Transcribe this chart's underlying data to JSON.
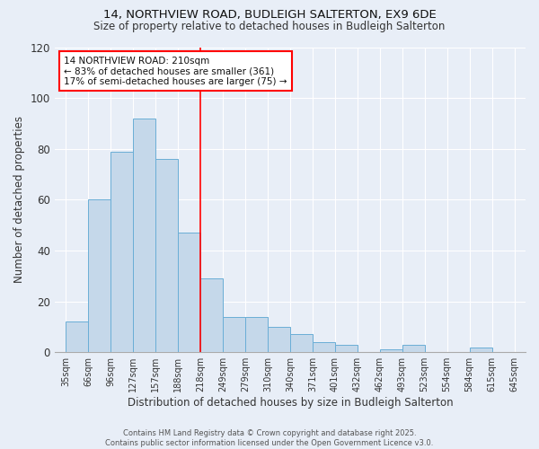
{
  "title1": "14, NORTHVIEW ROAD, BUDLEIGH SALTERTON, EX9 6DE",
  "title2": "Size of property relative to detached houses in Budleigh Salterton",
  "xlabel": "Distribution of detached houses by size in Budleigh Salterton",
  "ylabel": "Number of detached properties",
  "bar_values": [
    12,
    60,
    79,
    92,
    76,
    47,
    29,
    14,
    14,
    10,
    7,
    4,
    3,
    0,
    1,
    3,
    0,
    0,
    2,
    0
  ],
  "bar_labels": [
    "35sqm",
    "66sqm",
    "96sqm",
    "127sqm",
    "157sqm",
    "188sqm",
    "218sqm",
    "249sqm",
    "279sqm",
    "310sqm",
    "340sqm",
    "371sqm",
    "401sqm",
    "432sqm",
    "462sqm",
    "493sqm",
    "523sqm",
    "554sqm",
    "584sqm",
    "615sqm",
    "645sqm"
  ],
  "bar_color": "#c5d8ea",
  "bar_edge_color": "#6aaed6",
  "ylim": [
    0,
    120
  ],
  "yticks": [
    0,
    20,
    40,
    60,
    80,
    100,
    120
  ],
  "red_line_label_index": 6,
  "annotation_text_line1": "14 NORTHVIEW ROAD: 210sqm",
  "annotation_text_line2": "← 83% of detached houses are smaller (361)",
  "annotation_text_line3": "17% of semi-detached houses are larger (75) →",
  "footer_line1": "Contains HM Land Registry data © Crown copyright and database right 2025.",
  "footer_line2": "Contains public sector information licensed under the Open Government Licence v3.0.",
  "background_color": "#e8eef7",
  "plot_bg_color": "#e8eef7"
}
